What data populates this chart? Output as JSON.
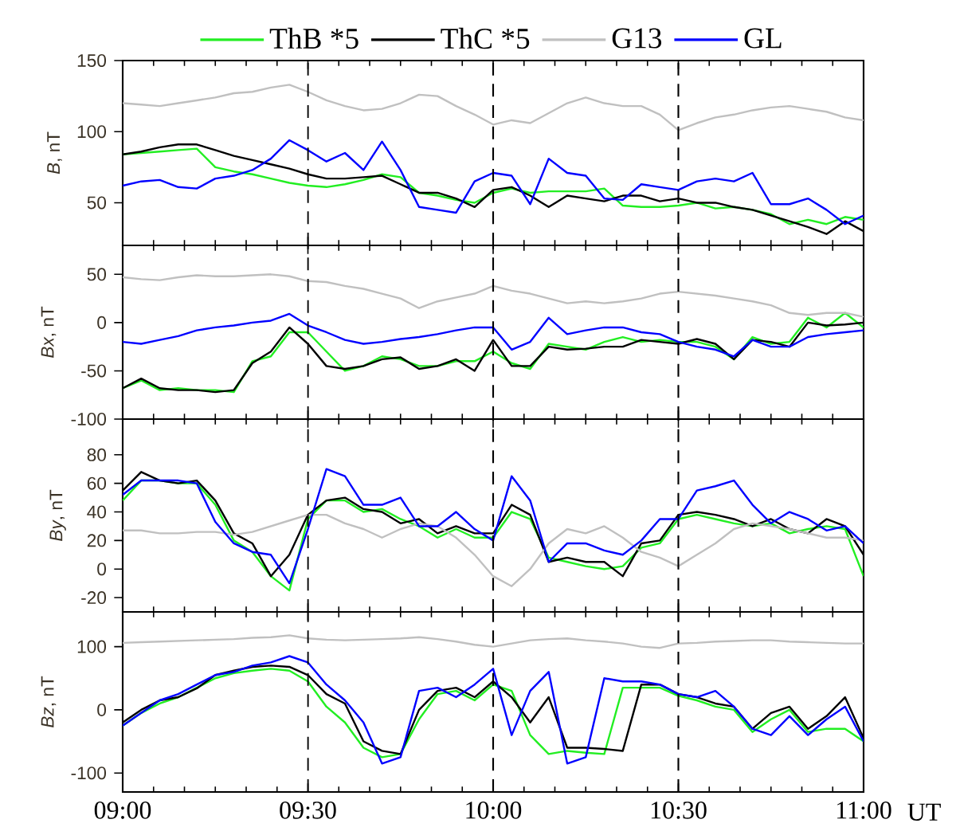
{
  "chart_data": [
    {
      "type": "line",
      "ylabel": "*B*, nT",
      "legend": "top",
      "x": [
        9,
        9.05,
        9.1,
        9.15,
        9.2,
        9.25,
        9.3,
        9.35,
        9.4,
        9.45,
        9.5,
        9.55,
        9.6,
        9.65,
        9.7,
        9.75,
        9.8,
        9.85,
        9.9,
        9.95,
        10,
        10.05,
        10.1,
        10.15,
        10.2,
        10.25,
        10.3,
        10.35,
        10.4,
        10.45,
        10.5,
        10.55,
        10.6,
        10.65,
        10.7,
        10.75,
        10.8,
        10.85,
        10.9,
        10.95,
        11
      ],
      "xlim": [
        9,
        11
      ],
      "xticks": [
        {
          "value": 9,
          "label": null
        },
        {
          "value": 9.5,
          "label": null
        },
        {
          "value": 10,
          "label": null
        },
        {
          "value": 10.5,
          "label": null
        },
        {
          "value": 11,
          "label": null
        }
      ],
      "ylim": [
        20,
        150
      ],
      "yticks": [
        50,
        100,
        150
      ],
      "tick_labels": "y",
      "ref_lines": [
        {
          "axis": "x",
          "value": 9.5,
          "line_style": "dashed"
        },
        {
          "axis": "x",
          "value": 10,
          "line_style": "dashed"
        },
        {
          "axis": "x",
          "value": 10.5,
          "line_style": "dashed"
        }
      ],
      "series": [
        {
          "name": "ThB *5",
          "color": "#22ee22",
          "values": [
            84,
            85,
            86,
            87,
            88,
            75,
            72,
            70,
            67,
            64,
            62,
            61,
            63,
            66,
            70,
            68,
            57,
            55,
            52,
            50,
            57,
            60,
            57,
            58,
            58,
            58,
            60,
            48,
            47,
            47,
            48,
            50,
            46,
            47,
            45,
            42,
            35,
            38,
            35,
            40,
            38
          ]
        },
        {
          "name": "ThC *5",
          "color": "#000000",
          "values": [
            84,
            86,
            89,
            91,
            91,
            87,
            83,
            80,
            77,
            74,
            70,
            67,
            67,
            68,
            69,
            63,
            57,
            57,
            53,
            47,
            59,
            61,
            55,
            47,
            55,
            53,
            51,
            55,
            55,
            51,
            53,
            50,
            50,
            47,
            45,
            41,
            37,
            33,
            28,
            37,
            30
          ]
        },
        {
          "name": "G13",
          "color": "#c0c0c0",
          "values": [
            120,
            119,
            118,
            120,
            122,
            124,
            127,
            128,
            131,
            133,
            128,
            122,
            118,
            115,
            116,
            120,
            126,
            125,
            118,
            112,
            105,
            108,
            106,
            113,
            120,
            124,
            120,
            118,
            118,
            112,
            101,
            106,
            110,
            112,
            115,
            117,
            118,
            116,
            114,
            110,
            108
          ]
        },
        {
          "name": "GL",
          "color": "#0000ff",
          "values": [
            62,
            65,
            66,
            61,
            60,
            67,
            69,
            73,
            81,
            94,
            87,
            79,
            85,
            73,
            93,
            73,
            47,
            45,
            43,
            65,
            71,
            69,
            49,
            81,
            71,
            69,
            53,
            52,
            63,
            61,
            59,
            65,
            67,
            65,
            71,
            49,
            49,
            53,
            45,
            35,
            41
          ]
        }
      ]
    },
    {
      "type": "line",
      "ylabel": "*Bx*, nT",
      "x": [
        9,
        9.05,
        9.1,
        9.15,
        9.2,
        9.25,
        9.3,
        9.35,
        9.4,
        9.45,
        9.5,
        9.55,
        9.6,
        9.65,
        9.7,
        9.75,
        9.8,
        9.85,
        9.9,
        9.95,
        10,
        10.05,
        10.1,
        10.15,
        10.2,
        10.25,
        10.3,
        10.35,
        10.4,
        10.45,
        10.5,
        10.55,
        10.6,
        10.65,
        10.7,
        10.75,
        10.8,
        10.85,
        10.9,
        10.95,
        11
      ],
      "xlim": [
        9,
        11
      ],
      "xticks": [
        {
          "value": 9,
          "label": null
        },
        {
          "value": 9.5,
          "label": null
        },
        {
          "value": 10,
          "label": null
        },
        {
          "value": 10.5,
          "label": null
        },
        {
          "value": 11,
          "label": null
        }
      ],
      "ylim": [
        -100,
        80
      ],
      "yticks": [
        -100,
        -50,
        0,
        50
      ],
      "tick_labels": "y",
      "ref_lines": [
        {
          "axis": "x",
          "value": 9.5,
          "line_style": "dashed"
        },
        {
          "axis": "x",
          "value": 10,
          "line_style": "dashed"
        },
        {
          "axis": "x",
          "value": 10.5,
          "line_style": "dashed"
        }
      ],
      "series": [
        {
          "color": "#22ee22",
          "values": [
            -68,
            -60,
            -70,
            -68,
            -70,
            -70,
            -72,
            -40,
            -35,
            -10,
            -10,
            -30,
            -50,
            -45,
            -35,
            -38,
            -45,
            -45,
            -40,
            -40,
            -30,
            -42,
            -48,
            -22,
            -25,
            -28,
            -20,
            -15,
            -20,
            -18,
            -20,
            -20,
            -25,
            -38,
            -15,
            -22,
            -20,
            5,
            -5,
            10,
            -5
          ]
        },
        {
          "color": "#000000",
          "values": [
            -68,
            -58,
            -68,
            -70,
            -70,
            -72,
            -70,
            -42,
            -30,
            -5,
            -22,
            -45,
            -48,
            -45,
            -38,
            -36,
            -48,
            -45,
            -38,
            -50,
            -18,
            -45,
            -45,
            -25,
            -28,
            -27,
            -25,
            -25,
            -18,
            -20,
            -22,
            -17,
            -22,
            -38,
            -18,
            -20,
            -25,
            0,
            -3,
            -2,
            0
          ]
        },
        {
          "color": "#c0c0c0",
          "values": [
            47,
            45,
            44,
            47,
            49,
            48,
            48,
            49,
            50,
            48,
            43,
            42,
            38,
            35,
            30,
            25,
            15,
            22,
            26,
            30,
            38,
            33,
            30,
            25,
            20,
            22,
            20,
            22,
            25,
            30,
            32,
            30,
            28,
            25,
            22,
            18,
            10,
            8,
            10,
            10,
            6
          ]
        },
        {
          "color": "#0000ff",
          "values": [
            -20,
            -22,
            -18,
            -14,
            -8,
            -5,
            -3,
            0,
            2,
            9,
            -3,
            -10,
            -18,
            -22,
            -20,
            -17,
            -15,
            -12,
            -8,
            -5,
            -5,
            -28,
            -20,
            5,
            -12,
            -8,
            -5,
            -5,
            -10,
            -12,
            -20,
            -25,
            -28,
            -35,
            -18,
            -25,
            -25,
            -15,
            -12,
            -10,
            -8
          ]
        }
      ]
    },
    {
      "type": "line",
      "ylabel": "*By*, nT",
      "x": [
        9,
        9.05,
        9.1,
        9.15,
        9.2,
        9.25,
        9.3,
        9.35,
        9.4,
        9.45,
        9.5,
        9.55,
        9.6,
        9.65,
        9.7,
        9.75,
        9.8,
        9.85,
        9.9,
        9.95,
        10,
        10.05,
        10.1,
        10.15,
        10.2,
        10.25,
        10.3,
        10.35,
        10.4,
        10.45,
        10.5,
        10.55,
        10.6,
        10.65,
        10.7,
        10.75,
        10.8,
        10.85,
        10.9,
        10.95,
        11
      ],
      "xlim": [
        9,
        11
      ],
      "xticks": [
        {
          "value": 9,
          "label": null
        },
        {
          "value": 9.5,
          "label": null
        },
        {
          "value": 10,
          "label": null
        },
        {
          "value": 10.5,
          "label": null
        },
        {
          "value": 11,
          "label": null
        }
      ],
      "ylim": [
        -30,
        105
      ],
      "yticks": [
        -20,
        0,
        20,
        40,
        60,
        80
      ],
      "tick_labels": "y",
      "ref_lines": [
        {
          "axis": "x",
          "value": 9.5,
          "line_style": "dashed"
        },
        {
          "axis": "x",
          "value": 10,
          "line_style": "dashed"
        },
        {
          "axis": "x",
          "value": 10.5,
          "line_style": "dashed"
        }
      ],
      "series": [
        {
          "color": "#22ee22",
          "values": [
            48,
            62,
            62,
            60,
            60,
            45,
            20,
            12,
            -5,
            -15,
            35,
            48,
            48,
            40,
            42,
            35,
            30,
            22,
            28,
            22,
            22,
            40,
            35,
            8,
            5,
            2,
            0,
            2,
            15,
            18,
            35,
            38,
            35,
            32,
            30,
            32,
            25,
            28,
            30,
            28,
            -5
          ]
        },
        {
          "color": "#000000",
          "values": [
            55,
            68,
            62,
            60,
            62,
            48,
            25,
            18,
            -5,
            10,
            38,
            48,
            50,
            42,
            40,
            32,
            35,
            25,
            30,
            25,
            25,
            45,
            38,
            5,
            8,
            5,
            5,
            -5,
            18,
            20,
            38,
            40,
            38,
            35,
            30,
            35,
            28,
            25,
            35,
            30,
            10
          ]
        },
        {
          "color": "#c0c0c0",
          "values": [
            27,
            27,
            25,
            25,
            26,
            26,
            24,
            26,
            30,
            34,
            38,
            38,
            32,
            28,
            22,
            28,
            32,
            30,
            22,
            10,
            -5,
            -12,
            0,
            18,
            28,
            25,
            30,
            22,
            12,
            8,
            2,
            10,
            18,
            28,
            32,
            30,
            28,
            25,
            22,
            22,
            20
          ]
        },
        {
          "color": "#0000ff",
          "values": [
            52,
            62,
            62,
            62,
            60,
            33,
            18,
            12,
            10,
            -10,
            28,
            70,
            65,
            45,
            45,
            50,
            30,
            30,
            40,
            28,
            20,
            65,
            48,
            5,
            18,
            18,
            13,
            10,
            20,
            35,
            35,
            55,
            58,
            62,
            45,
            32,
            40,
            35,
            27,
            30,
            18
          ]
        }
      ]
    },
    {
      "type": "line",
      "ylabel": "*Bz*, nT",
      "xlabel": "UT",
      "x": [
        9,
        9.05,
        9.1,
        9.15,
        9.2,
        9.25,
        9.3,
        9.35,
        9.4,
        9.45,
        9.5,
        9.55,
        9.6,
        9.65,
        9.7,
        9.75,
        9.8,
        9.85,
        9.9,
        9.95,
        10,
        10.05,
        10.1,
        10.15,
        10.2,
        10.25,
        10.3,
        10.35,
        10.4,
        10.45,
        10.5,
        10.55,
        10.6,
        10.65,
        10.7,
        10.75,
        10.8,
        10.85,
        10.9,
        10.95,
        11
      ],
      "xlim": [
        9,
        11
      ],
      "xticks": [
        {
          "value": 9,
          "label": "09:00"
        },
        {
          "value": 9.5,
          "label": "09:30"
        },
        {
          "value": 10,
          "label": "10:00"
        },
        {
          "value": 10.5,
          "label": "10:30"
        },
        {
          "value": 11,
          "label": "11:00"
        }
      ],
      "ylim": [
        -130,
        155
      ],
      "yticks": [
        -100,
        0,
        100
      ],
      "ref_lines": [
        {
          "axis": "x",
          "value": 9.5,
          "line_style": "dashed"
        },
        {
          "axis": "x",
          "value": 10,
          "line_style": "dashed"
        },
        {
          "axis": "x",
          "value": 10.5,
          "line_style": "dashed"
        }
      ],
      "series": [
        {
          "color": "#22ee22",
          "values": [
            -25,
            -5,
            10,
            20,
            35,
            50,
            58,
            62,
            65,
            62,
            45,
            5,
            -20,
            -60,
            -75,
            -70,
            -15,
            25,
            30,
            15,
            40,
            30,
            -40,
            -70,
            -65,
            -68,
            -70,
            35,
            35,
            35,
            22,
            15,
            5,
            0,
            -35,
            -15,
            0,
            -35,
            -30,
            -30,
            -50
          ]
        },
        {
          "color": "#000000",
          "values": [
            -20,
            0,
            15,
            20,
            34,
            55,
            62,
            68,
            70,
            68,
            55,
            25,
            10,
            -50,
            -65,
            -70,
            0,
            30,
            35,
            20,
            45,
            20,
            -20,
            20,
            -60,
            -60,
            -62,
            -65,
            40,
            40,
            25,
            20,
            10,
            5,
            -30,
            -5,
            5,
            -30,
            -10,
            20,
            -45
          ]
        },
        {
          "color": "#c0c0c0",
          "values": [
            106,
            107,
            108,
            109,
            110,
            111,
            112,
            114,
            115,
            118,
            113,
            111,
            110,
            111,
            112,
            113,
            115,
            112,
            108,
            103,
            100,
            105,
            110,
            112,
            113,
            110,
            108,
            105,
            100,
            98,
            105,
            106,
            108,
            109,
            110,
            110,
            108,
            107,
            106,
            105,
            105
          ]
        },
        {
          "color": "#0000ff",
          "values": [
            -25,
            -5,
            15,
            25,
            40,
            55,
            60,
            70,
            75,
            85,
            75,
            40,
            15,
            -20,
            -85,
            -75,
            30,
            35,
            20,
            40,
            65,
            -40,
            30,
            60,
            -85,
            -75,
            50,
            45,
            45,
            40,
            25,
            20,
            30,
            5,
            -30,
            -40,
            -10,
            -40,
            -15,
            5,
            -50
          ]
        }
      ]
    }
  ]
}
